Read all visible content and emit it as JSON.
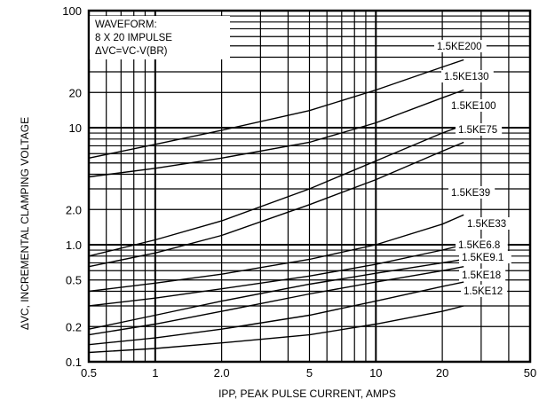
{
  "chart_data": {
    "type": "line",
    "title": "",
    "xlabel": "IPP, PEAK PULSE CURRENT, AMPS",
    "ylabel": "ΔVC, INCREMENTAL CLAMPING VOLTAGE",
    "x_scale": "log",
    "y_scale": "log",
    "xlim": [
      0.5,
      50
    ],
    "ylim": [
      0.1,
      100
    ],
    "grid": true,
    "x_ticks": [
      {
        "value": 0.5,
        "label": "0.5"
      },
      {
        "value": 1,
        "label": "1"
      },
      {
        "value": 2,
        "label": "2.0"
      },
      {
        "value": 5,
        "label": "5"
      },
      {
        "value": 10,
        "label": "10"
      },
      {
        "value": 20,
        "label": "20"
      },
      {
        "value": 50,
        "label": "50"
      }
    ],
    "y_ticks": [
      {
        "value": 0.1,
        "label": "0.1"
      },
      {
        "value": 0.2,
        "label": "0.2"
      },
      {
        "value": 0.5,
        "label": "0.5"
      },
      {
        "value": 1,
        "label": "1.0"
      },
      {
        "value": 2,
        "label": "2.0"
      },
      {
        "value": 10,
        "label": "10"
      },
      {
        "value": 20,
        "label": "20"
      },
      {
        "value": 100,
        "label": "100"
      }
    ],
    "annotation": [
      "WAVEFORM:",
      "8 X 20 IMPULSE",
      "ΔVC=VC-V(BR)"
    ],
    "series": [
      {
        "name": "1.5KE200",
        "x": [
          0.5,
          1,
          2,
          5,
          10,
          20,
          25
        ],
        "y": [
          5.5,
          7.2,
          9.5,
          14,
          21,
          33,
          38
        ]
      },
      {
        "name": "1.5KE130",
        "x": [
          0.5,
          1,
          2,
          5,
          10,
          20,
          25
        ],
        "y": [
          3.8,
          4.5,
          5.5,
          7.5,
          11,
          18,
          21
        ]
      },
      {
        "name": "1.5KE100",
        "x": [
          0.5,
          1,
          2,
          5,
          10,
          20,
          25
        ],
        "y": [
          0.8,
          1.1,
          1.6,
          3,
          5.2,
          9,
          10.5
        ]
      },
      {
        "name": "1.5KE75",
        "x": [
          0.5,
          1,
          2,
          5,
          10,
          20,
          25
        ],
        "y": [
          0.65,
          0.85,
          1.2,
          2.2,
          3.6,
          6.3,
          7.5
        ]
      },
      {
        "name": "1.5KE39",
        "x": [
          0.5,
          1,
          2,
          5,
          10,
          20,
          25
        ],
        "y": [
          0.4,
          0.47,
          0.56,
          0.75,
          1.0,
          1.5,
          1.8
        ]
      },
      {
        "name": "1.5KE33",
        "x": [
          0.5,
          1,
          2,
          5,
          10,
          20,
          25
        ],
        "y": [
          0.3,
          0.35,
          0.42,
          0.54,
          0.68,
          0.9,
          1.0
        ]
      },
      {
        "name": "1.5KE6.8",
        "x": [
          0.5,
          1,
          2,
          5,
          10,
          20,
          25
        ],
        "y": [
          0.19,
          0.25,
          0.33,
          0.46,
          0.57,
          0.7,
          0.75
        ]
      },
      {
        "name": "1.5KE9.1",
        "x": [
          0.5,
          1,
          2,
          5,
          10,
          20,
          25
        ],
        "y": [
          0.17,
          0.21,
          0.27,
          0.38,
          0.48,
          0.6,
          0.65
        ]
      },
      {
        "name": "1.5KE18",
        "x": [
          0.5,
          1,
          2,
          5,
          10,
          20,
          25
        ],
        "y": [
          0.14,
          0.16,
          0.19,
          0.25,
          0.33,
          0.44,
          0.48
        ]
      },
      {
        "name": "1.5KE12",
        "x": [
          0.5,
          1,
          2,
          5,
          10,
          20,
          25
        ],
        "y": [
          0.12,
          0.13,
          0.145,
          0.17,
          0.21,
          0.27,
          0.3
        ]
      }
    ]
  }
}
